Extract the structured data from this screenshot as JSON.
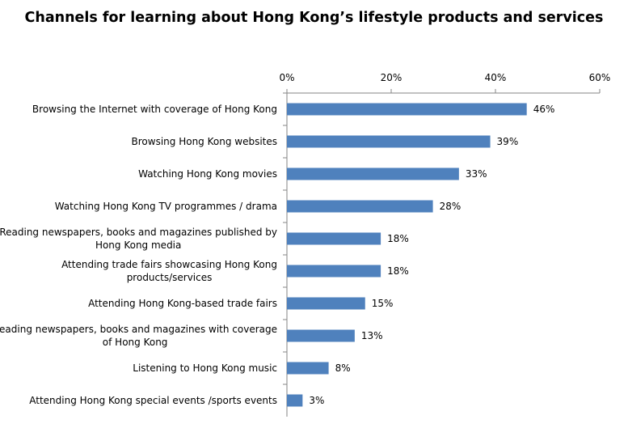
{
  "chart_data": {
    "type": "bar",
    "orientation": "horizontal",
    "title": "Channels for learning about Hong Kong’s lifestyle products and services",
    "xlabel": "",
    "ylabel": "",
    "xlim": [
      0,
      60
    ],
    "x_ticks": [
      "0%",
      "20%",
      "40%",
      "60%"
    ],
    "x_axis_position": "top",
    "grid": false,
    "legend": "none",
    "bar_color": "#4F81BD",
    "categories": [
      [
        "Browsing the Internet with coverage of Hong Kong"
      ],
      [
        "Browsing Hong Kong websites"
      ],
      [
        "Watching Hong Kong movies"
      ],
      [
        "Watching Hong Kong TV programmes / drama"
      ],
      [
        "Reading newspapers, books and magazines published by",
        "Hong Kong media"
      ],
      [
        "Attending trade fairs showcasing Hong Kong",
        "products/services"
      ],
      [
        "Attending Hong Kong-based trade fairs"
      ],
      [
        "Reading newspapers, books and magazines with coverage",
        "of Hong Kong"
      ],
      [
        "Listening to Hong Kong music"
      ],
      [
        "Attending Hong Kong special events /sports events"
      ]
    ],
    "values": [
      46,
      39,
      33,
      28,
      18,
      18,
      15,
      13,
      8,
      3
    ],
    "data_labels": [
      "46%",
      "39%",
      "33%",
      "28%",
      "18%",
      "18%",
      "15%",
      "13%",
      "8%",
      "3%"
    ]
  }
}
